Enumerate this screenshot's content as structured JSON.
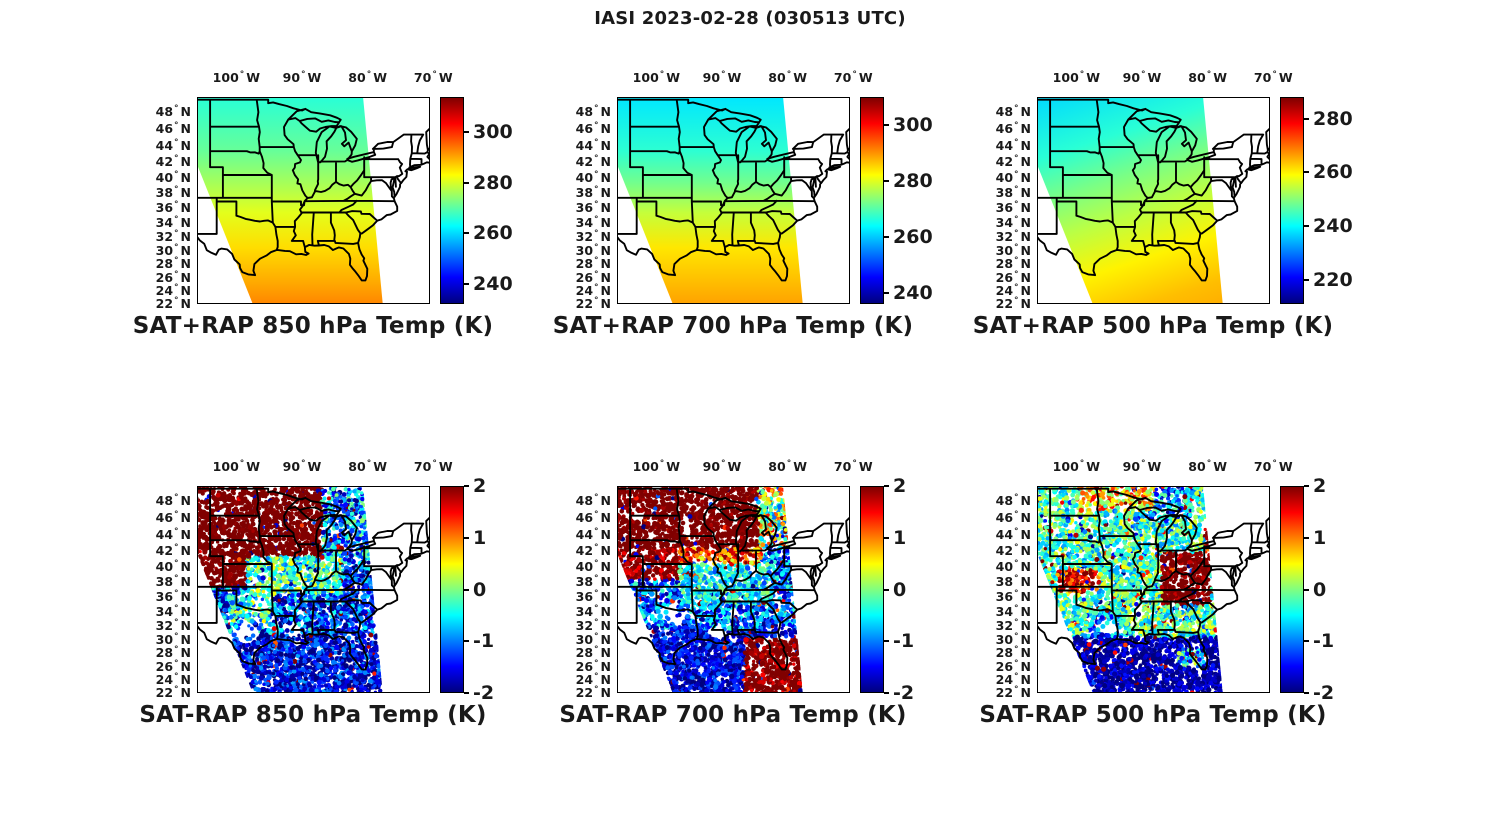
{
  "figure": {
    "title": "IASI 2023-02-28 (030513 UTC)",
    "background": "#ffffff",
    "text_color": "#1a1a1a"
  },
  "chart_data": {
    "type": "heatmap",
    "title": "IASI 2023-02-28 (030513 UTC)",
    "instrument": "IASI",
    "date": "2023-02-28",
    "time_utc": "030513",
    "colormap": "jet",
    "legend_position": "right-of-each-panel",
    "grid": false,
    "geo": {
      "projection": "mercator",
      "lon_range": [
        -106,
        -70.5
      ],
      "lat_range": [
        21.5,
        49.3
      ],
      "lon_ticks": [
        100,
        90,
        80,
        70
      ],
      "lon_suffix": "W",
      "lat_ticks": [
        48,
        46,
        44,
        42,
        40,
        38,
        36,
        34,
        32,
        30,
        28,
        26,
        24,
        22
      ],
      "lat_suffix": "N",
      "swath": {
        "top_lon": [
          -110.1,
          -80.7
        ],
        "bottom_lon": [
          -97.5,
          -77.7
        ]
      }
    },
    "panels": [
      {
        "id": "sat_plus_rap_850",
        "kind": "retrieval",
        "title": "SAT+RAP 850 hPa Temp (K)",
        "colorbar": {
          "ticks": [
            300,
            280,
            260,
            240
          ],
          "min": 232,
          "max": 314,
          "units": "K"
        },
        "lat_profile": {
          "lats": [
            49.3,
            43,
            39,
            35,
            30,
            25,
            21.5
          ],
          "values": [
            266,
            271,
            276,
            281,
            286,
            290,
            293
          ]
        }
      },
      {
        "id": "sat_plus_rap_700",
        "kind": "retrieval",
        "title": "SAT+RAP 700 hPa Temp (K)",
        "colorbar": {
          "ticks": [
            300,
            280,
            260,
            240
          ],
          "min": 236,
          "max": 310,
          "units": "K"
        },
        "lat_profile": {
          "lats": [
            49.3,
            43,
            39,
            35,
            30,
            25,
            21.5
          ],
          "values": [
            262,
            267,
            272,
            278,
            284,
            287,
            289
          ]
        }
      },
      {
        "id": "sat_plus_rap_500",
        "kind": "retrieval",
        "diagonal": true,
        "title": "SAT+RAP 500 hPa Temp (K)",
        "colorbar": {
          "ticks": [
            280,
            260,
            240,
            220
          ],
          "min": 211,
          "max": 288,
          "units": "K"
        },
        "lat_profile": {
          "lats": [
            49.3,
            44,
            40,
            36,
            31,
            26,
            21.5
          ],
          "values": [
            237,
            243,
            249,
            254,
            260,
            264,
            266
          ]
        }
      },
      {
        "id": "sat_minus_rap_850",
        "kind": "difference",
        "title": "SAT-RAP 850 hPa Temp (K)",
        "colorbar": {
          "ticks": [
            2,
            1,
            0,
            -1,
            -2
          ],
          "min": -2,
          "max": 2,
          "units": "K"
        },
        "pattern": {
          "base": -1.2,
          "noise": 1.0,
          "outlier_frac": 0.05,
          "seed": 11,
          "regions": [
            {
              "lon": [
                -120,
                -87.0
              ],
              "lat": [
                41,
                52
              ],
              "value": 2.35,
              "noise": 0.45
            },
            {
              "lon": [
                -120,
                -98.5
              ],
              "lat": [
                37,
                41
              ],
              "value": 2.3,
              "noise": 0.5
            },
            {
              "lon": [
                -98.5,
                -84
              ],
              "lat": [
                36,
                41
              ],
              "value": -0.25,
              "noise": 0.85
            },
            {
              "lon": [
                -87,
                -70
              ],
              "lat": [
                41,
                52
              ],
              "value": -0.95,
              "noise": 1.05
            },
            {
              "lon": [
                -101,
                -95
              ],
              "lat": [
                31.5,
                36
              ],
              "value": -0.35,
              "noise": 1.0
            },
            {
              "lon": [
                -120,
                -70
              ],
              "lat": [
                20,
                30.5
              ],
              "value": -1.55,
              "noise": 0.7
            },
            {
              "lon": [
                -84,
                -74
              ],
              "lat": [
                30.5,
                38
              ],
              "value": -1.3,
              "noise": 0.8
            }
          ],
          "holes": [
            {
              "lon": -98.3,
              "lat": 30.6,
              "rlon": 1.9,
              "rlat": 1.5
            },
            {
              "lon": -91.4,
              "lat": 30.9,
              "rlon": 1.3,
              "rlat": 1.0
            },
            {
              "lon": -96.6,
              "lat": 34.2,
              "rlon": 1.4,
              "rlat": 1.0
            }
          ]
        }
      },
      {
        "id": "sat_minus_rap_700",
        "kind": "difference",
        "title": "SAT-RAP 700 hPa Temp (K)",
        "colorbar": {
          "ticks": [
            2,
            1,
            0,
            -1,
            -2
          ],
          "min": -2,
          "max": 2,
          "units": "K"
        },
        "pattern": {
          "base": -1.1,
          "noise": 0.9,
          "outlier_frac": 0.05,
          "seed": 22,
          "regions": [
            {
              "lon": [
                -120,
                -84.5
              ],
              "lat": [
                42,
                52
              ],
              "value": 2.3,
              "noise": 0.5
            },
            {
              "lon": [
                -84.5,
                -70
              ],
              "lat": [
                42,
                52
              ],
              "value": 0.2,
              "noise": 1.3
            },
            {
              "lon": [
                -120,
                -96.5
              ],
              "lat": [
                38,
                42
              ],
              "value": 2.1,
              "noise": 0.6
            },
            {
              "lon": [
                -96.5,
                -84
              ],
              "lat": [
                40,
                42
              ],
              "value": 1.2,
              "noise": 0.9
            },
            {
              "lon": [
                -96.5,
                -82
              ],
              "lat": [
                34.5,
                40
              ],
              "value": -0.55,
              "noise": 0.7
            },
            {
              "lon": [
                -120,
                -70
              ],
              "lat": [
                20,
                31
              ],
              "value": -1.6,
              "noise": 0.6
            },
            {
              "lon": [
                -86.5,
                -76
              ],
              "lat": [
                20,
                30
              ],
              "value": 2.2,
              "noise": 0.7
            }
          ],
          "holes": [
            {
              "lon": -97.4,
              "lat": 33.3,
              "rlon": 2.0,
              "rlat": 1.5
            },
            {
              "lon": -90.5,
              "lat": 30.8,
              "rlon": 1.5,
              "rlat": 1.2
            },
            {
              "lon": -99.5,
              "lat": 36.0,
              "rlon": 1.2,
              "rlat": 0.9
            }
          ]
        }
      },
      {
        "id": "sat_minus_rap_500",
        "kind": "difference",
        "title": "SAT-RAP 500 hPa Temp (K)",
        "colorbar": {
          "ticks": [
            2,
            1,
            0,
            -1,
            -2
          ],
          "min": -2,
          "max": 2,
          "units": "K"
        },
        "pattern": {
          "base": -0.25,
          "noise": 0.75,
          "outlier_frac": 0.07,
          "seed": 33,
          "regions": [
            {
              "lon": [
                -91,
                -82
              ],
              "lat": [
                45.5,
                49.5
              ],
              "value": -0.9,
              "noise": 0.9
            },
            {
              "lon": [
                -100,
                -88
              ],
              "lat": [
                46.5,
                49.5
              ],
              "value": 0.6,
              "noise": 0.9
            },
            {
              "lon": [
                -103,
                -96.5
              ],
              "lat": [
                36.3,
                39.3
              ],
              "value": 1.5,
              "noise": 0.8
            },
            {
              "lon": [
                -87,
                -79.5
              ],
              "lat": [
                34.5,
                41.5
              ],
              "value": 2.2,
              "noise": 0.5
            },
            {
              "lon": [
                -80.5,
                -75.5
              ],
              "lat": [
                41.5,
                44.5
              ],
              "value": 1.6,
              "noise": 0.8
            },
            {
              "lon": [
                -78,
                -74
              ],
              "lat": [
                44.5,
                47
              ],
              "value": -1.5,
              "noise": 0.6
            },
            {
              "lon": [
                -98,
                -93
              ],
              "lat": [
                30,
                33.5
              ],
              "value": -0.9,
              "noise": 0.8
            },
            {
              "lon": [
                -120,
                -70
              ],
              "lat": [
                20,
                30
              ],
              "value": -1.85,
              "noise": 0.45
            },
            {
              "lon": [
                -84.5,
                -80.5
              ],
              "lat": [
                25.5,
                28
              ],
              "value": -0.6,
              "noise": 1.0
            }
          ],
          "holes": [
            {
              "lon": -95,
              "lat": 31.5,
              "rlon": 1.5,
              "rlat": 1.2
            },
            {
              "lon": -90.5,
              "lat": 33.5,
              "rlon": 1.2,
              "rlat": 0.9
            }
          ]
        }
      }
    ]
  }
}
